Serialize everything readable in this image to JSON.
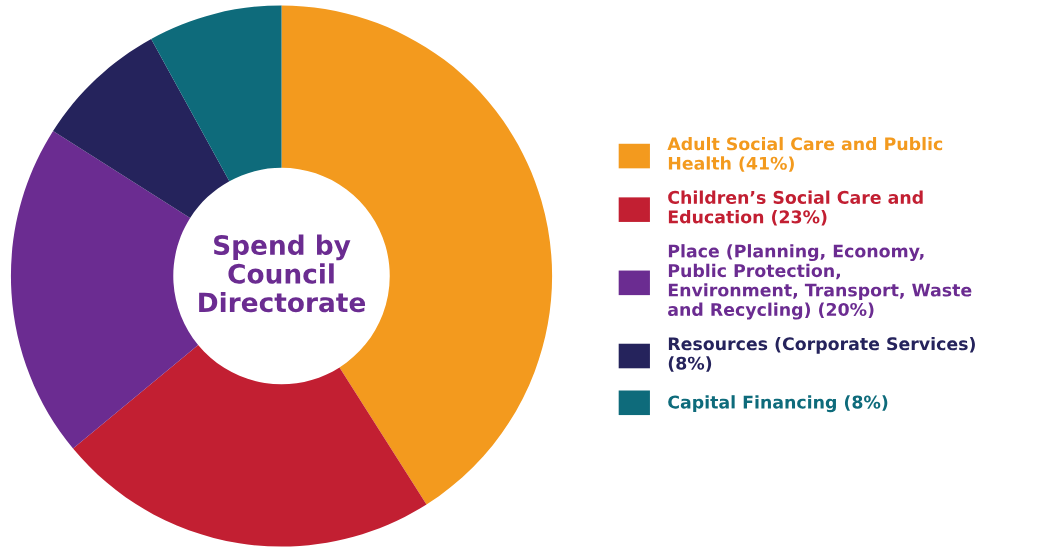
{
  "chart_data": {
    "type": "donut",
    "title": "Spend by Council Directorate",
    "categories": [
      "Adult Social Care and Public Health (41%)",
      "Children’s Social Care and Education (23%)",
      "Place (Planning, Economy, Public Protection, Environment, Transport, Waste and Recycling) (20%)",
      "Resources (Corporate Services) (8%)",
      "Capital Financing (8%)"
    ],
    "values": [
      41,
      23,
      20,
      8,
      8
    ],
    "colors": [
      "#f39a1e",
      "#c21f32",
      "#6b2c91",
      "#25235c",
      "#0e6b7b"
    ],
    "legend": "right"
  }
}
